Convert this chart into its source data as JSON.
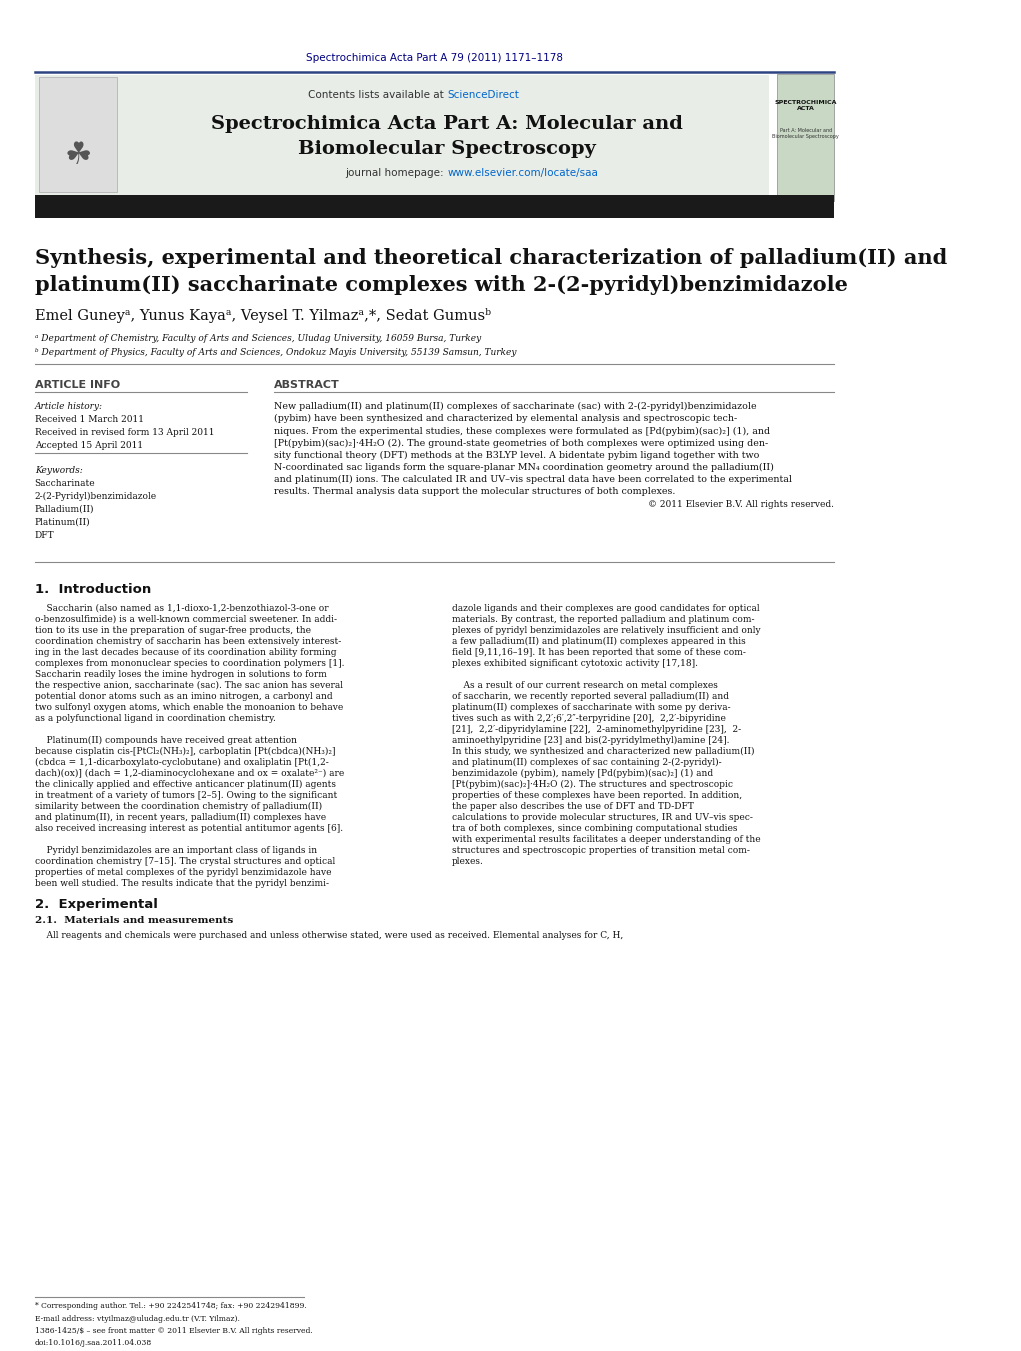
{
  "page_width": 10.21,
  "page_height": 13.51,
  "background_color": "#ffffff",
  "top_citation": "Spectrochimica Acta Part A 79 (2011) 1171–1178",
  "top_citation_color": "#000080",
  "journal_name_line1": "Spectrochimica Acta Part A: Molecular and",
  "journal_name_line2": "Biomolecular Spectroscopy",
  "journal_homepage_text": "journal homepage: ",
  "journal_homepage_url": "www.elsevier.com/locate/saa",
  "contents_text": "Contents lists available at ",
  "sciencedirect_text": "ScienceDirect",
  "link_color": "#0066cc",
  "header_bg_color": "#e8ede8",
  "header_border_color": "#2e4482",
  "dark_bar_color": "#1a1a1a",
  "elsevier_color": "#ff6600",
  "article_title_line1": "Synthesis, experimental and theoretical characterization of palladium(II) and",
  "article_title_line2": "platinum(II) saccharinate complexes with 2-(2-pyridyl)benzimidazole",
  "authors": "Emel Guneyᵃ, Yunus Kayaᵃ, Veysel T. Yilmazᵃ,*, Sedat Gumusᵇ",
  "affiliation_a": "ᵃ Department of Chemistry, Faculty of Arts and Sciences, Uludag University, 16059 Bursa, Turkey",
  "affiliation_b": "ᵇ Department of Physics, Faculty of Arts and Sciences, Ondokuz Mayis University, 55139 Samsun, Turkey",
  "article_info_label": "ARTICLE INFO",
  "abstract_label": "ABSTRACT",
  "article_history_label": "Article history:",
  "received_1": "Received 1 March 2011",
  "received_revised": "Received in revised form 13 April 2011",
  "accepted": "Accepted 15 April 2011",
  "keywords_label": "Keywords:",
  "keywords": [
    "Saccharinate",
    "2-(2-Pyridyl)benzimidazole",
    "Palladium(II)",
    "Platinum(II)",
    "DFT"
  ],
  "copyright": "© 2011 Elsevier B.V. All rights reserved.",
  "section1_title": "1.  Introduction",
  "section2_title": "2.  Experimental",
  "section21_title": "2.1.  Materials and measurements",
  "section21_text": "    All reagents and chemicals were purchased and unless otherwise stated, were used as received. Elemental analyses for C, H,",
  "footnote_corresponding": "* Corresponding author. Tel.: +90 2242541748; fax: +90 2242941899.",
  "footnote_email": "E-mail address: vtyilmaz@uludag.edu.tr (V.T. Yilmaz).",
  "footnote_issn": "1386-1425/$ – see front matter © 2011 Elsevier B.V. All rights reserved.",
  "footnote_doi": "doi:10.1016/j.saa.2011.04.038",
  "abstract_lines": [
    "New palladium(II) and platinum(II) complexes of saccharinate (sac) with 2-(2-pyridyl)benzimidazole",
    "(pybim) have been synthesized and characterized by elemental analysis and spectroscopic tech-",
    "niques. From the experimental studies, these complexes were formulated as [Pd(pybim)(sac)₂] (1), and",
    "[Pt(pybim)(sac)₂]·4H₂O (2). The ground-state geometries of both complexes were optimized using den-",
    "sity functional theory (DFT) methods at the B3LYP level. A bidentate pybim ligand together with two",
    "N-coordinated sac ligands form the square-planar MN₄ coordination geometry around the palladium(II)",
    "and platinum(II) ions. The calculated IR and UV–vis spectral data have been correlated to the experimental",
    "results. Thermal analysis data support the molecular structures of both complexes."
  ],
  "left_paragraphs": [
    "    Saccharin (also named as 1,1-dioxo-1,2-benzothiazol-3-one or",
    "o-benzosulfimide) is a well-known commercial sweetener. In addi-",
    "tion to its use in the preparation of sugar-free products, the",
    "coordination chemistry of saccharin has been extensively interest-",
    "ing in the last decades because of its coordination ability forming",
    "complexes from mononuclear species to coordination polymers [1].",
    "Saccharin readily loses the imine hydrogen in solutions to form",
    "the respective anion, saccharinate (sac). The sac anion has several",
    "potential donor atoms such as an imino nitrogen, a carbonyl and",
    "two sulfonyl oxygen atoms, which enable the monoanion to behave",
    "as a polyfunctional ligand in coordination chemistry.",
    "",
    "    Platinum(II) compounds have received great attention",
    "because cisplatin cis-[PtCl₂(NH₃)₂], carboplatin [Pt(cbdca)(NH₃)₂]",
    "(cbdca = 1,1-dicarboxylato-cyclobutane) and oxaliplatin [Pt(1,2-",
    "dach)(ox)] (dach = 1,2-diaminocyclohexane and ox = oxalate²⁻) are",
    "the clinically applied and effective anticancer platinum(II) agents",
    "in treatment of a variety of tumors [2–5]. Owing to the significant",
    "similarity between the coordination chemistry of palladium(II)",
    "and platinum(II), in recent years, palladium(II) complexes have",
    "also received increasing interest as potential antitumor agents [6].",
    "",
    "    Pyridyl benzimidazoles are an important class of ligands in",
    "coordination chemistry [7–15]. The crystal structures and optical",
    "properties of metal complexes of the pyridyl benzimidazole have",
    "been well studied. The results indicate that the pyridyl benzimi-"
  ],
  "right_paragraphs": [
    "dazole ligands and their complexes are good candidates for optical",
    "materials. By contrast, the reported palladium and platinum com-",
    "plexes of pyridyl benzimidazoles are relatively insufficient and only",
    "a few palladium(II) and platinum(II) complexes appeared in this",
    "field [9,11,16–19]. It has been reported that some of these com-",
    "plexes exhibited significant cytotoxic activity [17,18].",
    "",
    "    As a result of our current research on metal complexes",
    "of saccharin, we recently reported several palladium(II) and",
    "platinum(II) complexes of saccharinate with some py deriva-",
    "tives such as with 2,2′;6′,2″-terpyridine [20],  2,2′-bipyridine",
    "[21],  2,2′-dipyridylamine [22],  2-aminomethylpyridine [23],  2-",
    "aminoethylpyridine [23] and bis(2-pyridylmethyl)amine [24].",
    "In this study, we synthesized and characterized new palladium(II)",
    "and platinum(II) complexes of sac containing 2-(2-pyridyl)-",
    "benzimidazole (pybim), namely [Pd(pybim)(sac)₂] (1) and",
    "[Pt(pybim)(sac)₂]·4H₂O (2). The structures and spectroscopic",
    "properties of these complexes have been reported. In addition,",
    "the paper also describes the use of DFT and TD-DFT",
    "calculations to provide molecular structures, IR and UV–vis spec-",
    "tra of both complexes, since combining computational studies",
    "with experimental results facilitates a deeper understanding of the",
    "structures and spectroscopic properties of transition metal com-",
    "plexes."
  ]
}
